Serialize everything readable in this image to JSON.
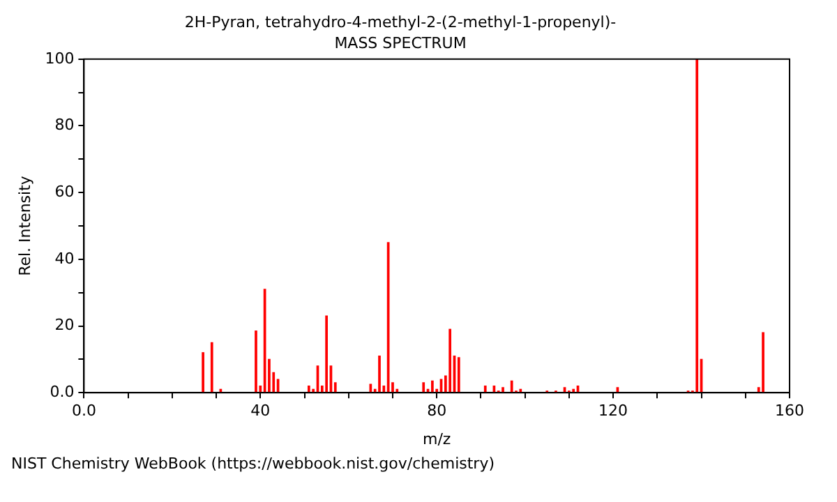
{
  "chart_data": {
    "type": "bar",
    "title": "2H-Pyran, tetrahydro-4-methyl-2-(2-methyl-1-propenyl)-",
    "subtitle": "MASS SPECTRUM",
    "xlabel": "m/z",
    "ylabel": "Rel. Intensity",
    "annotations": [
      "NIST Chemistry WebBook (https://webbook.nist.gov/chemistry)"
    ],
    "x": [
      27,
      29,
      31,
      39,
      40,
      41,
      42,
      43,
      44,
      51,
      52,
      53,
      54,
      55,
      56,
      57,
      65,
      66,
      67,
      68,
      69,
      70,
      71,
      77,
      78,
      79,
      80,
      81,
      82,
      83,
      84,
      85,
      91,
      93,
      94,
      95,
      97,
      98,
      99,
      105,
      107,
      109,
      110,
      111,
      112,
      121,
      137,
      138,
      139,
      140,
      153,
      154
    ],
    "values": [
      12,
      15,
      1,
      18.5,
      2,
      31,
      10,
      6,
      4,
      2,
      1,
      8,
      2,
      23,
      8,
      3,
      2.5,
      1,
      11,
      2,
      45,
      3,
      1,
      3,
      1,
      3.5,
      1,
      4,
      5,
      19,
      11,
      10.5,
      2,
      2,
      0.5,
      1.5,
      3.5,
      0.5,
      1,
      0.5,
      0.5,
      1.5,
      0.5,
      1,
      2,
      1.5,
      0.5,
      0.5,
      100,
      10,
      1.5,
      18
    ],
    "color": "#ff0000",
    "xlim": [
      0,
      160
    ],
    "xticks": [
      {
        "value": 0,
        "label": "0.0"
      },
      {
        "value": 10,
        "label": null
      },
      {
        "value": 20,
        "label": null
      },
      {
        "value": 30,
        "label": null
      },
      40,
      {
        "value": 50,
        "label": null
      },
      {
        "value": 60,
        "label": null
      },
      {
        "value": 70,
        "label": null
      },
      80,
      {
        "value": 90,
        "label": null
      },
      {
        "value": 100,
        "label": null
      },
      {
        "value": 110,
        "label": null
      },
      120,
      {
        "value": 130,
        "label": null
      },
      {
        "value": 140,
        "label": null
      },
      {
        "value": 150,
        "label": null
      },
      160
    ],
    "ylim": [
      0,
      100
    ],
    "yticks": [
      {
        "value": 0,
        "label": "0.0"
      },
      {
        "value": 10,
        "label": null
      },
      20,
      {
        "value": 30,
        "label": null
      },
      40,
      {
        "value": 50,
        "label": null
      },
      60,
      {
        "value": 70,
        "label": null
      },
      80,
      {
        "value": 90,
        "label": null
      },
      100
    ],
    "grid": false,
    "legend": false
  }
}
